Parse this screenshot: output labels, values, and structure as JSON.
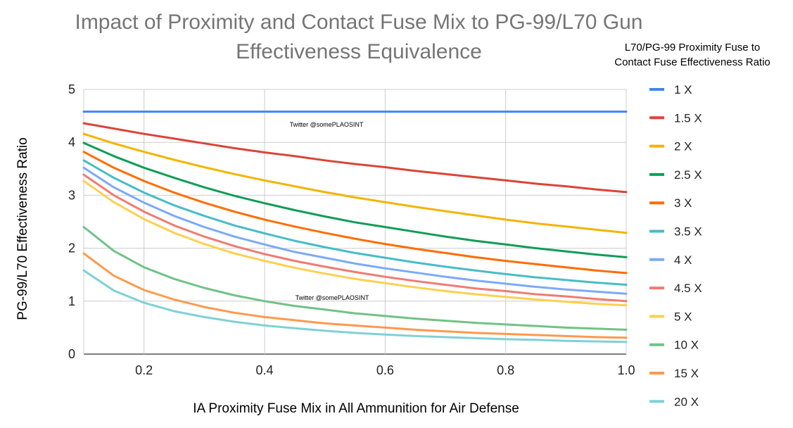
{
  "chart_data": {
    "type": "line",
    "title_line1": "Impact of Proximity and Contact Fuse Mix to PG-99/L70 Gun",
    "title_line2": "Effectiveness Equivalence",
    "xlabel": "IA Proximity Fuse Mix in All Ammunition for Air Defense",
    "ylabel": "PG-99/L70 Effectiveness Ratio",
    "xlim": [
      0.1,
      1.0
    ],
    "ylim": [
      0,
      5
    ],
    "x_ticks": [
      "0.2",
      "0.4",
      "0.6",
      "0.8",
      "1.0"
    ],
    "y_ticks": [
      "0",
      "1",
      "2",
      "3",
      "4",
      "5"
    ],
    "grid": true,
    "legend_title_line1": "L70/PG-99 Proximity Fuse to",
    "legend_title_line2": "Contact Fuse Effectiveness Ratio",
    "legend_position": "right",
    "watermarks": [
      "Twitter @somePLAOSINT",
      "Twitter @somePLAOSINT"
    ],
    "x": [
      0.1,
      0.15,
      0.2,
      0.25,
      0.3,
      0.35,
      0.4,
      0.45,
      0.5,
      0.55,
      0.6,
      0.65,
      0.7,
      0.75,
      0.8,
      0.85,
      0.9,
      0.95,
      1.0
    ],
    "series": [
      {
        "name": "1 X",
        "color": "#4285F4",
        "values": [
          4.58,
          4.58,
          4.58,
          4.58,
          4.58,
          4.58,
          4.58,
          4.58,
          4.58,
          4.58,
          4.58,
          4.58,
          4.58,
          4.58,
          4.58,
          4.58,
          4.58,
          4.58,
          4.58
        ]
      },
      {
        "name": "1.5 X",
        "color": "#DB4437",
        "values": [
          4.36,
          4.26,
          4.16,
          4.07,
          3.98,
          3.89,
          3.81,
          3.74,
          3.66,
          3.59,
          3.53,
          3.46,
          3.4,
          3.34,
          3.28,
          3.22,
          3.17,
          3.11,
          3.06
        ]
      },
      {
        "name": "2 X",
        "color": "#F4B400",
        "values": [
          4.16,
          3.98,
          3.82,
          3.67,
          3.53,
          3.4,
          3.28,
          3.17,
          3.06,
          2.96,
          2.87,
          2.78,
          2.7,
          2.62,
          2.54,
          2.47,
          2.41,
          2.35,
          2.29
        ]
      },
      {
        "name": "2.5 X",
        "color": "#0F9D58",
        "values": [
          3.99,
          3.74,
          3.52,
          3.33,
          3.15,
          2.99,
          2.85,
          2.72,
          2.6,
          2.49,
          2.4,
          2.31,
          2.22,
          2.14,
          2.07,
          2.0,
          1.94,
          1.88,
          1.83
        ]
      },
      {
        "name": "3 X",
        "color": "#FF6D01",
        "values": [
          3.82,
          3.52,
          3.27,
          3.05,
          2.86,
          2.69,
          2.54,
          2.41,
          2.29,
          2.18,
          2.08,
          1.99,
          1.91,
          1.83,
          1.76,
          1.7,
          1.64,
          1.58,
          1.53
        ]
      },
      {
        "name": "3.5 X",
        "color": "#46BDC6",
        "values": [
          3.66,
          3.33,
          3.05,
          2.81,
          2.61,
          2.43,
          2.28,
          2.14,
          2.02,
          1.91,
          1.82,
          1.73,
          1.65,
          1.58,
          1.51,
          1.45,
          1.4,
          1.35,
          1.31
        ]
      },
      {
        "name": "4 X",
        "color": "#7BAAF7",
        "values": [
          3.52,
          3.15,
          2.86,
          2.61,
          2.4,
          2.22,
          2.07,
          1.93,
          1.82,
          1.71,
          1.62,
          1.54,
          1.46,
          1.39,
          1.33,
          1.27,
          1.22,
          1.18,
          1.14
        ]
      },
      {
        "name": "4.5 X",
        "color": "#F07B72",
        "values": [
          3.39,
          3.0,
          2.69,
          2.43,
          2.22,
          2.04,
          1.89,
          1.76,
          1.65,
          1.55,
          1.46,
          1.38,
          1.31,
          1.24,
          1.19,
          1.13,
          1.09,
          1.04,
          1.0
        ]
      },
      {
        "name": "5 X",
        "color": "#FCD04F",
        "values": [
          3.27,
          2.87,
          2.55,
          2.29,
          2.08,
          1.9,
          1.76,
          1.63,
          1.52,
          1.42,
          1.34,
          1.26,
          1.19,
          1.13,
          1.08,
          1.03,
          0.99,
          0.95,
          0.92
        ]
      },
      {
        "name": "10 X",
        "color": "#71C287",
        "values": [
          2.4,
          1.95,
          1.64,
          1.42,
          1.25,
          1.11,
          1.0,
          0.91,
          0.84,
          0.77,
          0.72,
          0.67,
          0.63,
          0.59,
          0.56,
          0.53,
          0.5,
          0.48,
          0.46
        ]
      },
      {
        "name": "15 X",
        "color": "#FF994D",
        "values": [
          1.9,
          1.48,
          1.21,
          1.03,
          0.89,
          0.78,
          0.7,
          0.64,
          0.58,
          0.54,
          0.5,
          0.46,
          0.43,
          0.4,
          0.38,
          0.36,
          0.34,
          0.32,
          0.31
        ]
      },
      {
        "name": "20 X",
        "color": "#7ED1D7",
        "values": [
          1.58,
          1.2,
          0.97,
          0.81,
          0.7,
          0.61,
          0.54,
          0.49,
          0.44,
          0.4,
          0.37,
          0.34,
          0.32,
          0.3,
          0.28,
          0.27,
          0.25,
          0.24,
          0.23
        ]
      }
    ]
  }
}
